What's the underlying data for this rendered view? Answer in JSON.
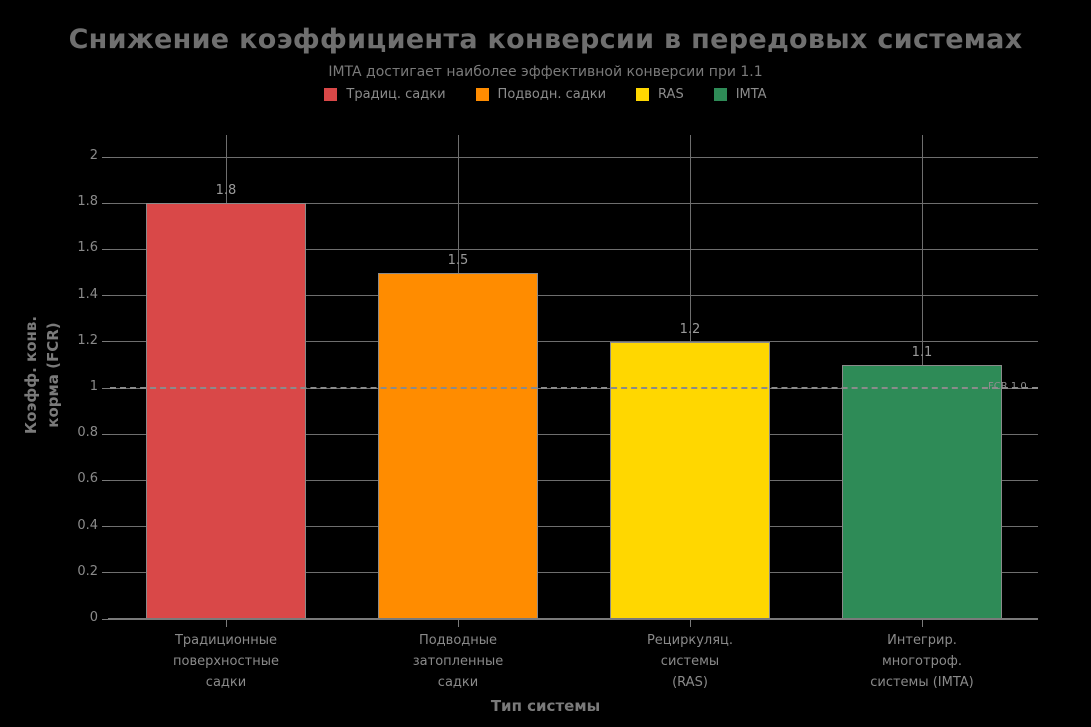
{
  "chart_data": {
    "type": "bar",
    "title": "Снижение коэффициента конверсии в передовых системах",
    "subtitle": "IMTA достигает наиболее эффективной конверсии при 1.1",
    "xlabel": "Тип системы",
    "ylabel": "Коэфф. конв. корма (FCR)",
    "ylabel_lines": [
      "Коэфф. конв.",
      "корма (FCR)"
    ],
    "categories": [
      "Традиционные поверхностные садки",
      "Подводные затопленные садки",
      "Рециркуляц. системы (RAS)",
      "Интегрир. многотроф. системы (IMTA)"
    ],
    "category_lines": [
      [
        "Традиционные",
        "поверхностные",
        "садки"
      ],
      [
        "Подводные",
        "затопленные",
        "садки"
      ],
      [
        "Рециркуляц.",
        "системы",
        "(RAS)"
      ],
      [
        "Интегрир.",
        "многотроф.",
        "системы (IMTA)"
      ]
    ],
    "values": [
      1.8,
      1.5,
      1.2,
      1.1
    ],
    "value_labels": [
      "1.8",
      "1.5",
      "1.2",
      "1.1"
    ],
    "bar_colors": [
      "#d94848",
      "#ff8c00",
      "#ffd700",
      "#2e8b57"
    ],
    "legend": [
      {
        "label": "Традиц. садки",
        "color": "#d94848"
      },
      {
        "label": "Подводн. садки",
        "color": "#ff8c00"
      },
      {
        "label": "RAS",
        "color": "#ffd700"
      },
      {
        "label": "IMTA",
        "color": "#2e8b57"
      }
    ],
    "legend_position": "top",
    "grid": true,
    "ylim": [
      0,
      2.1
    ],
    "yticks": {
      "values": [
        0,
        0.2,
        0.4,
        0.6,
        0.8,
        1,
        1.2,
        1.4,
        1.6,
        1.8,
        2
      ],
      "labels": [
        "0",
        "0.2",
        "0.4",
        "0.6",
        "0.8",
        "1",
        "1.2",
        "1.4",
        "1.6",
        "1.8",
        "2"
      ]
    },
    "reference_line": {
      "value": 1.0,
      "label": "FCR 1.0",
      "style": "dashed"
    }
  },
  "style_colors": {
    "background": "#000000",
    "title_text": "#6f6f6f",
    "muted_text": "#8a8a8a",
    "grid": "#6e6e6e"
  }
}
